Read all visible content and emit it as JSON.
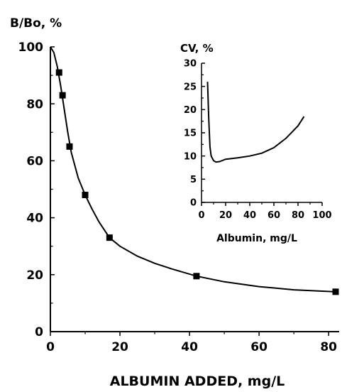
{
  "chart_data": [
    {
      "type": "line",
      "title": "",
      "ylabel": "B/Bo, %",
      "xlabel": "ALBUMIN ADDED, mg/L",
      "xlim": [
        0,
        82
      ],
      "ylim": [
        0,
        100
      ],
      "xticks": [
        "0",
        "20",
        "40",
        "60",
        "80"
      ],
      "yticks": [
        "0",
        "20",
        "40",
        "60",
        "80",
        "100"
      ],
      "series": [
        {
          "marker": "square",
          "points": [
            [
              2.5,
              91
            ],
            [
              3.5,
              83
            ],
            [
              5.5,
              65
            ],
            [
              10,
              48
            ],
            [
              17,
              33
            ],
            [
              42,
              19.5
            ],
            [
              82,
              14
            ]
          ]
        }
      ],
      "curve": [
        [
          0,
          100
        ],
        [
          1,
          98
        ],
        [
          2,
          93
        ],
        [
          3,
          86
        ],
        [
          4,
          78
        ],
        [
          5,
          70
        ],
        [
          6,
          63
        ],
        [
          8,
          54
        ],
        [
          10,
          48
        ],
        [
          12,
          43
        ],
        [
          14,
          38.5
        ],
        [
          17,
          33
        ],
        [
          20,
          30
        ],
        [
          25,
          26.5
        ],
        [
          30,
          24
        ],
        [
          35,
          22
        ],
        [
          42,
          19.5
        ],
        [
          50,
          17.5
        ],
        [
          60,
          15.8
        ],
        [
          70,
          14.7
        ],
        [
          82,
          14
        ]
      ]
    },
    {
      "type": "line",
      "title": "",
      "ylabel": "CV, %",
      "xlabel": "Albumin, mg/L",
      "xlim": [
        0,
        100
      ],
      "ylim": [
        0,
        30
      ],
      "xticks": [
        "0",
        "20",
        "40",
        "60",
        "80",
        "100"
      ],
      "yticks": [
        "0",
        "5",
        "10",
        "15",
        "20",
        "25",
        "30"
      ],
      "series": [
        {
          "points": [
            [
              5,
              26
            ],
            [
              6,
              18
            ],
            [
              7,
              12
            ],
            [
              8,
              10
            ],
            [
              10,
              9
            ],
            [
              12,
              8.7
            ],
            [
              15,
              8.8
            ],
            [
              20,
              9.3
            ],
            [
              30,
              9.6
            ],
            [
              40,
              10
            ],
            [
              50,
              10.6
            ],
            [
              60,
              11.8
            ],
            [
              70,
              13.8
            ],
            [
              80,
              16.5
            ],
            [
              85,
              18.5
            ]
          ]
        }
      ]
    }
  ]
}
